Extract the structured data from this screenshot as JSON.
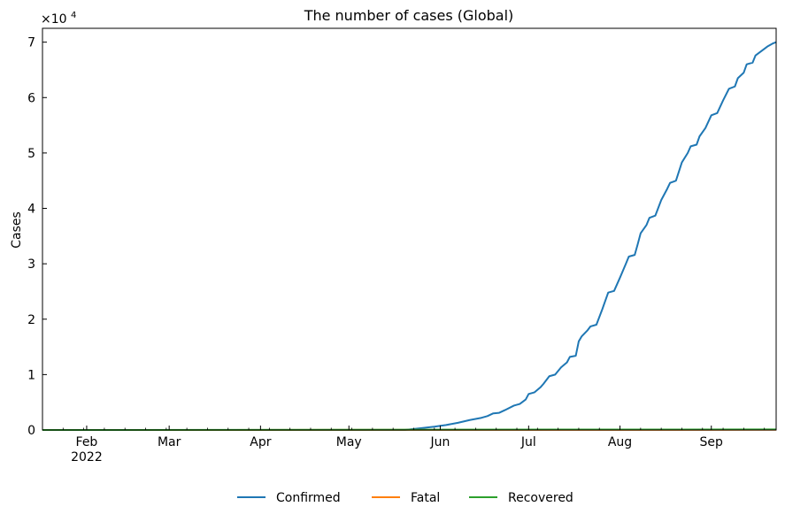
{
  "chart_data": {
    "type": "line",
    "title": "The number of cases (Global)",
    "ylabel": "Cases",
    "xlabel": "",
    "y_multiplier": "×10",
    "y_exponent": "4",
    "xlim": [
      "2022-01-17",
      "2022-09-23"
    ],
    "ylim": [
      0,
      72500
    ],
    "grid": false,
    "legend_position": "bottom-center",
    "x_ticks": [
      {
        "date": "2022-02-01",
        "label": "Feb",
        "sublabel": "2022"
      },
      {
        "date": "2022-03-01",
        "label": "Mar",
        "sublabel": ""
      },
      {
        "date": "2022-04-01",
        "label": "Apr",
        "sublabel": ""
      },
      {
        "date": "2022-05-01",
        "label": "May",
        "sublabel": ""
      },
      {
        "date": "2022-06-01",
        "label": "Jun",
        "sublabel": ""
      },
      {
        "date": "2022-07-01",
        "label": "Jul",
        "sublabel": ""
      },
      {
        "date": "2022-08-01",
        "label": "Aug",
        "sublabel": ""
      },
      {
        "date": "2022-09-01",
        "label": "Sep",
        "sublabel": ""
      }
    ],
    "y_ticks": [
      {
        "value": 0,
        "label": "0"
      },
      {
        "value": 10000,
        "label": "1"
      },
      {
        "value": 20000,
        "label": "2"
      },
      {
        "value": 30000,
        "label": "3"
      },
      {
        "value": 40000,
        "label": "4"
      },
      {
        "value": 50000,
        "label": "5"
      },
      {
        "value": 60000,
        "label": "6"
      },
      {
        "value": 70000,
        "label": "7"
      }
    ],
    "series": [
      {
        "name": "Confirmed",
        "color": "#1f77b4",
        "points": [
          [
            "2022-01-17",
            0
          ],
          [
            "2022-05-01",
            0
          ],
          [
            "2022-05-20",
            0
          ],
          [
            "2022-05-25",
            300
          ],
          [
            "2022-05-30",
            600
          ],
          [
            "2022-06-03",
            900
          ],
          [
            "2022-06-07",
            1300
          ],
          [
            "2022-06-11",
            1800
          ],
          [
            "2022-06-15",
            2200
          ],
          [
            "2022-06-17",
            2500
          ],
          [
            "2022-06-19",
            3000
          ],
          [
            "2022-06-21",
            3100
          ],
          [
            "2022-06-23",
            3600
          ],
          [
            "2022-06-26",
            4400
          ],
          [
            "2022-06-28",
            4700
          ],
          [
            "2022-06-30",
            5500
          ],
          [
            "2022-07-01",
            6500
          ],
          [
            "2022-07-03",
            6800
          ],
          [
            "2022-07-05",
            7700
          ],
          [
            "2022-07-06",
            8300
          ],
          [
            "2022-07-08",
            9700
          ],
          [
            "2022-07-10",
            10000
          ],
          [
            "2022-07-12",
            11300
          ],
          [
            "2022-07-14",
            12200
          ],
          [
            "2022-07-15",
            13200
          ],
          [
            "2022-07-17",
            13400
          ],
          [
            "2022-07-18",
            16000
          ],
          [
            "2022-07-19",
            16900
          ],
          [
            "2022-07-21",
            18000
          ],
          [
            "2022-07-22",
            18700
          ],
          [
            "2022-07-24",
            19000
          ],
          [
            "2022-07-26",
            21800
          ],
          [
            "2022-07-28",
            24800
          ],
          [
            "2022-07-30",
            25100
          ],
          [
            "2022-08-01",
            27500
          ],
          [
            "2022-08-03",
            30000
          ],
          [
            "2022-08-04",
            31300
          ],
          [
            "2022-08-06",
            31600
          ],
          [
            "2022-08-07",
            33500
          ],
          [
            "2022-08-08",
            35500
          ],
          [
            "2022-08-10",
            37000
          ],
          [
            "2022-08-11",
            38300
          ],
          [
            "2022-08-13",
            38700
          ],
          [
            "2022-08-15",
            41500
          ],
          [
            "2022-08-17",
            43500
          ],
          [
            "2022-08-18",
            44600
          ],
          [
            "2022-08-20",
            45000
          ],
          [
            "2022-08-22",
            48300
          ],
          [
            "2022-08-24",
            50000
          ],
          [
            "2022-08-25",
            51200
          ],
          [
            "2022-08-27",
            51500
          ],
          [
            "2022-08-28",
            53000
          ],
          [
            "2022-08-30",
            54500
          ],
          [
            "2022-09-01",
            56800
          ],
          [
            "2022-09-03",
            57200
          ],
          [
            "2022-09-05",
            59500
          ],
          [
            "2022-09-07",
            61600
          ],
          [
            "2022-09-09",
            62000
          ],
          [
            "2022-09-10",
            63500
          ],
          [
            "2022-09-12",
            64500
          ],
          [
            "2022-09-13",
            66000
          ],
          [
            "2022-09-15",
            66300
          ],
          [
            "2022-09-16",
            67600
          ],
          [
            "2022-09-18",
            68400
          ],
          [
            "2022-09-20",
            69200
          ],
          [
            "2022-09-22",
            69800
          ],
          [
            "2022-09-23",
            70000
          ]
        ]
      },
      {
        "name": "Fatal",
        "color": "#ff7f0e",
        "points": [
          [
            "2022-01-17",
            0
          ],
          [
            "2022-09-23",
            30
          ]
        ]
      },
      {
        "name": "Recovered",
        "color": "#2ca02c",
        "points": [
          [
            "2022-01-17",
            0
          ],
          [
            "2022-09-23",
            100
          ]
        ]
      }
    ]
  }
}
